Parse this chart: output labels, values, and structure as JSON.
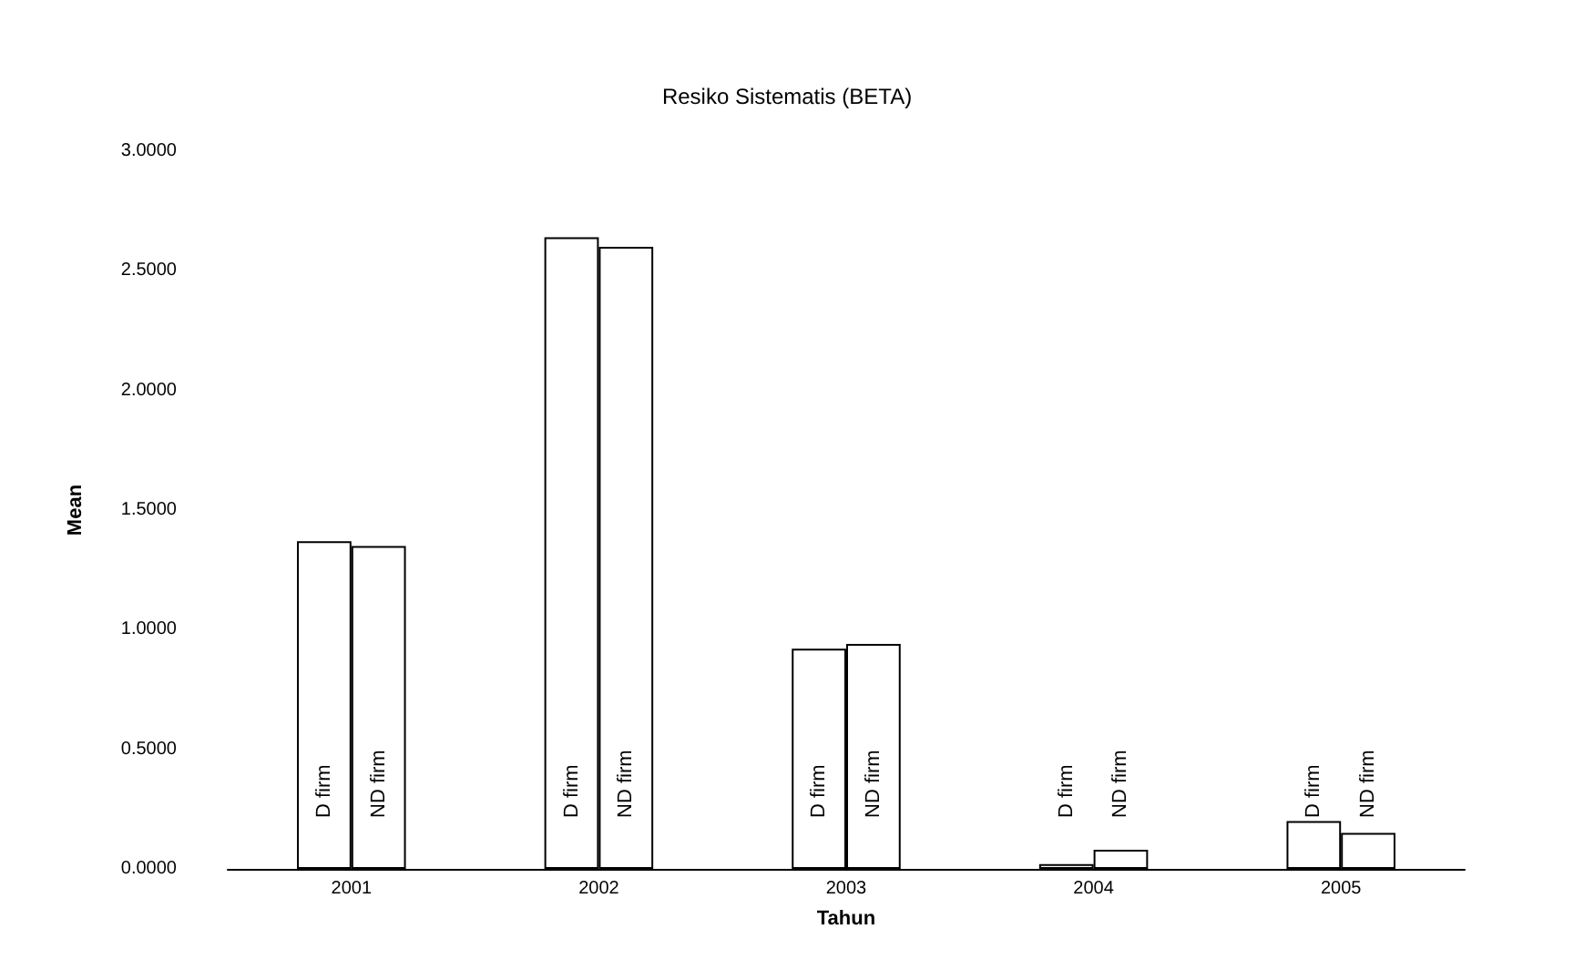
{
  "chart_data": {
    "type": "bar",
    "title": "Resiko Sistematis (BETA)",
    "xlabel": "Tahun",
    "ylabel": "Mean",
    "categories": [
      "2001",
      "2002",
      "2003",
      "2004",
      "2005"
    ],
    "series": [
      {
        "name": "D firm",
        "color": "#ffffff",
        "values": [
          1.37,
          2.64,
          0.92,
          0.02,
          0.2
        ]
      },
      {
        "name": "ND firm",
        "color": "#ffffff",
        "values": [
          1.35,
          2.6,
          0.94,
          0.08,
          0.15
        ]
      }
    ],
    "ylim": [
      0,
      3
    ],
    "yticks": [
      {
        "value": 0,
        "label": "0.0000"
      },
      {
        "value": 0.5,
        "label": "0.5000"
      },
      {
        "value": 1,
        "label": "1.0000"
      },
      {
        "value": 1.5,
        "label": "1.5000"
      },
      {
        "value": 2,
        "label": "2.0000"
      },
      {
        "value": 2.5,
        "label": "2.5000"
      },
      {
        "value": 3,
        "label": "3.0000"
      }
    ],
    "grid": false,
    "legend": false
  }
}
